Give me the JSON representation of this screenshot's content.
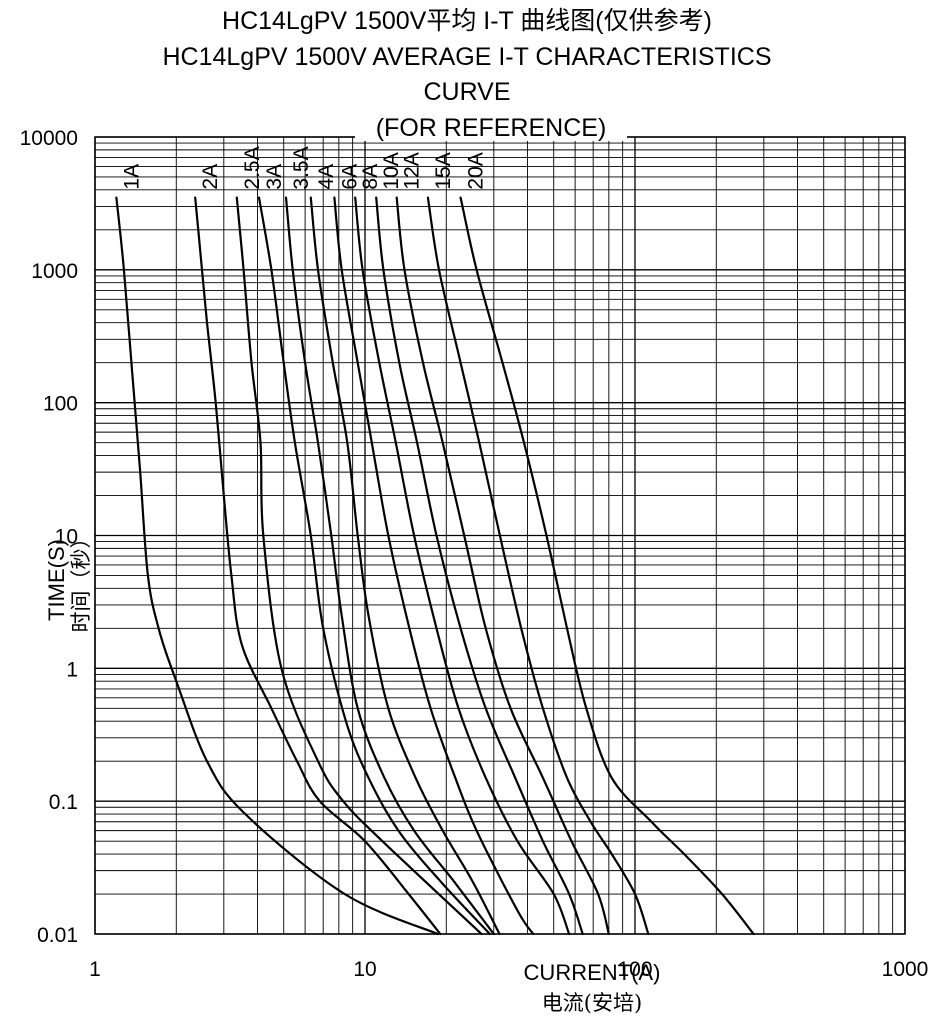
{
  "title_cn": "HC14LgPV 1500V平均  I-T 曲线图(仅供参考)",
  "title_en_line1": "HC14LgPV 1500V AVERAGE I-T CHARACTERISTICS",
  "title_en_line2": "CURVE",
  "title_en_line3": "(FOR REFERENCE)",
  "chart_data": {
    "type": "line",
    "xscale": "log",
    "yscale": "log",
    "xlim": [
      1,
      1000
    ],
    "ylim": [
      0.01,
      10000
    ],
    "grid": true,
    "xlabel": "CURRENT(A)",
    "xlabel_cn": "电流(安培)",
    "ylabel": "TIME(S)",
    "ylabel_cn": "时间（秒）",
    "xticks": [
      1,
      10,
      100,
      1000
    ],
    "xtick_labels": [
      "1",
      "10",
      "100",
      "1000"
    ],
    "yticks": [
      10000,
      1000,
      100,
      10,
      1,
      0.1,
      0.01
    ],
    "ytick_labels": [
      "10000",
      "1000",
      "100",
      "10",
      "1",
      "0.1",
      "0.01"
    ],
    "series": [
      {
        "name": "1A",
        "points": [
          [
            1.2,
            3500
          ],
          [
            1.28,
            1000
          ],
          [
            1.37,
            180
          ],
          [
            1.47,
            30
          ],
          [
            1.57,
            5
          ],
          [
            1.72,
            2
          ],
          [
            2.0,
            0.8
          ],
          [
            2.6,
            0.2
          ],
          [
            3.6,
            0.08
          ],
          [
            8.4,
            0.02
          ],
          [
            18.6,
            0.01
          ]
        ]
      },
      {
        "name": "2A",
        "points": [
          [
            2.35,
            3500
          ],
          [
            2.47,
            1200
          ],
          [
            2.6,
            400
          ],
          [
            2.8,
            100
          ],
          [
            3.0,
            20
          ],
          [
            3.2,
            5
          ],
          [
            3.5,
            1.5
          ],
          [
            4.5,
            0.5
          ],
          [
            5.6,
            0.2
          ],
          [
            6.8,
            0.1
          ],
          [
            10.0,
            0.05
          ],
          [
            14.5,
            0.02
          ],
          [
            19.0,
            0.01
          ]
        ]
      },
      {
        "name": "2.5A",
        "points": [
          [
            3.35,
            3500
          ],
          [
            3.55,
            1000
          ],
          [
            3.8,
            200
          ],
          [
            4.1,
            50
          ],
          [
            4.2,
            10
          ],
          [
            4.9,
            1
          ],
          [
            6.7,
            0.2
          ],
          [
            8.3,
            0.1
          ],
          [
            11.6,
            0.05
          ],
          [
            27.0,
            0.01
          ]
        ]
      },
      {
        "name": "3A",
        "points": [
          [
            4.05,
            3500
          ],
          [
            4.5,
            1000
          ],
          [
            5.0,
            200
          ],
          [
            5.5,
            50
          ],
          [
            6.3,
            10
          ],
          [
            7.0,
            2
          ],
          [
            8.5,
            0.4
          ],
          [
            10.3,
            0.15
          ],
          [
            13.3,
            0.06
          ],
          [
            19.0,
            0.025
          ],
          [
            29.0,
            0.01
          ]
        ]
      },
      {
        "name": "3.5A",
        "points": [
          [
            5.1,
            3500
          ],
          [
            5.4,
            1000
          ],
          [
            6.0,
            200
          ],
          [
            6.7,
            50
          ],
          [
            7.5,
            10
          ],
          [
            8.2,
            2.5
          ],
          [
            9.4,
            0.5
          ],
          [
            11.8,
            0.15
          ],
          [
            15.2,
            0.06
          ],
          [
            21.3,
            0.025
          ],
          [
            30.0,
            0.01
          ]
        ]
      },
      {
        "name": "4A",
        "points": [
          [
            6.3,
            3500
          ],
          [
            6.7,
            1000
          ],
          [
            7.6,
            200
          ],
          [
            8.6,
            50
          ],
          [
            9.4,
            10
          ],
          [
            10.3,
            2.5
          ],
          [
            12.2,
            0.5
          ],
          [
            15.4,
            0.15
          ],
          [
            19.4,
            0.06
          ],
          [
            25.0,
            0.025
          ],
          [
            31.5,
            0.01
          ]
        ]
      },
      {
        "name": "6A",
        "points": [
          [
            7.7,
            3500
          ],
          [
            8.2,
            1000
          ],
          [
            9.4,
            200
          ],
          [
            10.6,
            50
          ],
          [
            12.2,
            10
          ],
          [
            14.6,
            2
          ],
          [
            17.5,
            0.5
          ],
          [
            21.6,
            0.15
          ],
          [
            25.9,
            0.06
          ],
          [
            36.7,
            0.015
          ],
          [
            42.0,
            0.01
          ]
        ]
      },
      {
        "name": "8A",
        "points": [
          [
            9.2,
            3500
          ],
          [
            9.8,
            1000
          ],
          [
            11.3,
            200
          ],
          [
            13.0,
            50
          ],
          [
            15.2,
            10
          ],
          [
            18.4,
            2
          ],
          [
            22.2,
            0.5
          ],
          [
            28.0,
            0.15
          ],
          [
            36.7,
            0.05
          ],
          [
            50.0,
            0.02
          ],
          [
            57.0,
            0.01
          ]
        ]
      },
      {
        "name": "10A",
        "points": [
          [
            11.0,
            3500
          ],
          [
            11.7,
            1000
          ],
          [
            13.4,
            200
          ],
          [
            15.6,
            50
          ],
          [
            18.4,
            10
          ],
          [
            22.6,
            2
          ],
          [
            28.0,
            0.5
          ],
          [
            36.0,
            0.15
          ],
          [
            45.6,
            0.05
          ],
          [
            57.0,
            0.02
          ],
          [
            64.0,
            0.01
          ]
        ]
      },
      {
        "name": "12A",
        "points": [
          [
            13.1,
            3500
          ],
          [
            14.0,
            1000
          ],
          [
            16.4,
            200
          ],
          [
            19.4,
            50
          ],
          [
            23.3,
            10
          ],
          [
            28.0,
            2
          ],
          [
            34.6,
            0.5
          ],
          [
            45.6,
            0.15
          ],
          [
            58.2,
            0.05
          ],
          [
            73.0,
            0.02
          ],
          [
            80.0,
            0.01
          ]
        ]
      },
      {
        "name": "15A",
        "points": [
          [
            17.1,
            3500
          ],
          [
            18.8,
            1000
          ],
          [
            22.6,
            200
          ],
          [
            26.5,
            50
          ],
          [
            31.6,
            10
          ],
          [
            37.9,
            2
          ],
          [
            45.6,
            0.5
          ],
          [
            56.0,
            0.15
          ],
          [
            68.5,
            0.07
          ],
          [
            82.0,
            0.04
          ],
          [
            100,
            0.02
          ],
          [
            112,
            0.01
          ]
        ]
      },
      {
        "name": "20A",
        "points": [
          [
            22.6,
            3500
          ],
          [
            25.9,
            1000
          ],
          [
            32.3,
            200
          ],
          [
            38.8,
            50
          ],
          [
            47.0,
            10
          ],
          [
            56.0,
            2
          ],
          [
            66.0,
            0.5
          ],
          [
            82.0,
            0.15
          ],
          [
            115,
            0.07
          ],
          [
            152,
            0.04
          ],
          [
            210,
            0.02
          ],
          [
            275,
            0.01
          ]
        ]
      }
    ]
  }
}
